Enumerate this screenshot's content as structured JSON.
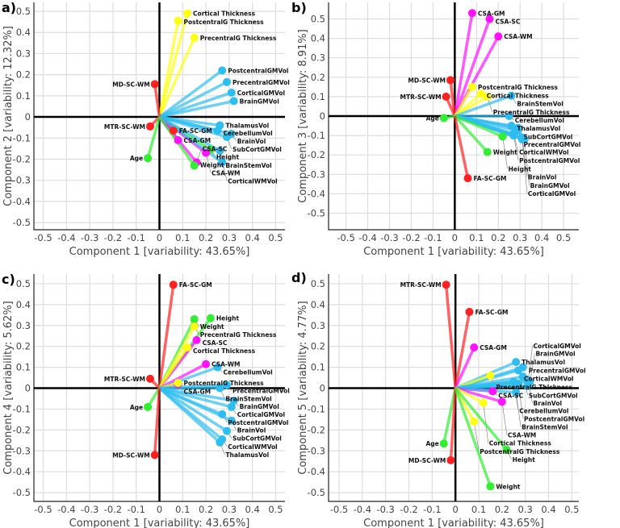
{
  "colors": {
    "red": "#ff2020",
    "yellow": "#ffff10",
    "magenta": "#ff10ff",
    "green": "#30ee30",
    "cyan": "#2ebdf0",
    "axis": "#000000",
    "grid": "#dddddd"
  },
  "groups": {
    "MD-SC-WM": "red",
    "MTR-SC-WM": "red",
    "FA-SC-GM": "red",
    "Cortical Thickness": "yellow",
    "PostcentralG Thickness": "yellow",
    "PrecentralG Thickness": "yellow",
    "CSA-GM": "magenta",
    "CSA-SC": "magenta",
    "CSA-WM": "magenta",
    "Age": "green",
    "Height": "green",
    "Weight": "green",
    "PostcentralGMVol": "cyan",
    "PrecentralGMVol": "cyan",
    "CorticalGMVol": "cyan",
    "BrainGMVol": "cyan",
    "ThalamusVol": "cyan",
    "CerebellumVol": "cyan",
    "BrainVol": "cyan",
    "SubCortGMVol": "cyan",
    "BrainStemVol": "cyan",
    "CorticalWMVol": "cyan"
  },
  "chart_data": [
    {
      "type": "scatter",
      "panel_label": "a)",
      "xlabel": "Component 1 [variability: 43.65%]",
      "ylabel": "Component 2 [variability: 12.32%]",
      "xlim": [
        -0.54,
        0.54
      ],
      "ylim": [
        -0.534,
        0.542
      ],
      "xticks": [
        "-0.5",
        "-0.4",
        "-0.3",
        "-0.2",
        "-0.1",
        "0",
        "0.1",
        "0.2",
        "0.3",
        "0.4",
        "0.5"
      ],
      "yticks": [
        "0.5",
        "0.4",
        "0.3",
        "0.2",
        "0.1",
        "0",
        "-0.1",
        "-0.2",
        "-0.3",
        "-0.4",
        "-0.5"
      ],
      "points": [
        {
          "label": "Cortical Thickness",
          "x": 0.12,
          "y": 0.49
        },
        {
          "label": "PostcentralG Thickness",
          "x": 0.08,
          "y": 0.455
        },
        {
          "label": "PrecentralG Thickness",
          "x": 0.15,
          "y": 0.375
        },
        {
          "label": "PostcentralGMVol",
          "x": 0.27,
          "y": 0.22
        },
        {
          "label": "PrecentralGMVol",
          "x": 0.29,
          "y": 0.165
        },
        {
          "label": "CorticalGMVol",
          "x": 0.31,
          "y": 0.115
        },
        {
          "label": "BrainGMVol",
          "x": 0.32,
          "y": 0.075
        },
        {
          "label": "MD-SC-WM",
          "x": -0.02,
          "y": 0.155
        },
        {
          "label": "MTR-SC-WM",
          "x": -0.04,
          "y": -0.045
        },
        {
          "label": "FA-SC-GM",
          "x": 0.06,
          "y": -0.065
        },
        {
          "label": "CSA-GM",
          "x": 0.08,
          "y": -0.11
        },
        {
          "label": "Age",
          "x": -0.05,
          "y": -0.195
        },
        {
          "label": "ThalamusVol",
          "x": 0.26,
          "y": -0.04
        },
        {
          "label": "CerebellumVol",
          "x": 0.25,
          "y": -0.065
        },
        {
          "label": "BrainVol",
          "x": 0.31,
          "y": -0.08
        },
        {
          "label": "SubCortGMVol",
          "x": 0.29,
          "y": -0.095
        },
        {
          "label": "Height",
          "x": 0.22,
          "y": -0.155
        },
        {
          "label": "BrainStemVol",
          "x": 0.26,
          "y": -0.16
        },
        {
          "label": "CSA-WM",
          "x": 0.2,
          "y": -0.17
        },
        {
          "label": "CSA-SC",
          "x": 0.16,
          "y": -0.215
        },
        {
          "label": "CorticalWMVol",
          "x": 0.27,
          "y": -0.215
        },
        {
          "label": "Weight",
          "x": 0.15,
          "y": -0.23
        }
      ]
    },
    {
      "type": "scatter",
      "panel_label": "b)",
      "xlabel": "Component 1 [variability: 43.65%]",
      "ylabel": "Component 3 [variability: 8.91%]",
      "xlim": [
        -0.58,
        0.57
      ],
      "ylim": [
        -0.585,
        0.585
      ],
      "xticks": [
        "-0.5",
        "-0.4",
        "-0.3",
        "-0.2",
        "-0.1",
        "0",
        "0.1",
        "0.2",
        "0.3",
        "0.4",
        "0.5"
      ],
      "yticks": [
        "0.5",
        "0.4",
        "0.3",
        "0.2",
        "0.1",
        "0",
        "-0.1",
        "-0.2",
        "-0.3",
        "-0.4",
        "-0.5"
      ],
      "points": [
        {
          "label": "CSA-GM",
          "x": 0.08,
          "y": 0.53
        },
        {
          "label": "CSA-SC",
          "x": 0.16,
          "y": 0.5
        },
        {
          "label": "CSA-WM",
          "x": 0.2,
          "y": 0.41
        },
        {
          "label": "MD-SC-WM",
          "x": -0.02,
          "y": 0.185
        },
        {
          "label": "MTR-SC-WM",
          "x": -0.04,
          "y": 0.1
        },
        {
          "label": "PostcentralG Thickness",
          "x": 0.08,
          "y": 0.15
        },
        {
          "label": "Cortical Thickness",
          "x": 0.12,
          "y": 0.115
        },
        {
          "label": "PrecentralG Thickness",
          "x": 0.15,
          "y": 0.1
        },
        {
          "label": "BrainStemVol",
          "x": 0.26,
          "y": 0.105
        },
        {
          "label": "CerebellumVol",
          "x": 0.25,
          "y": 0.0
        },
        {
          "label": "Age",
          "x": -0.05,
          "y": -0.01
        },
        {
          "label": "ThalamusVol",
          "x": 0.26,
          "y": -0.05
        },
        {
          "label": "SubCortGMVol",
          "x": 0.29,
          "y": -0.06
        },
        {
          "label": "PrecentralGMVol",
          "x": 0.29,
          "y": -0.075
        },
        {
          "label": "CorticalWMVol",
          "x": 0.27,
          "y": -0.09
        },
        {
          "label": "PostcentralGMVol",
          "x": 0.27,
          "y": -0.1
        },
        {
          "label": "BrainVol",
          "x": 0.31,
          "y": -0.11
        },
        {
          "label": "BrainGMVol",
          "x": 0.32,
          "y": -0.12
        },
        {
          "label": "CorticalGMVol",
          "x": 0.31,
          "y": -0.12
        },
        {
          "label": "Height",
          "x": 0.22,
          "y": -0.105
        },
        {
          "label": "Weight",
          "x": 0.15,
          "y": -0.185
        },
        {
          "label": "FA-SC-GM",
          "x": 0.06,
          "y": -0.32
        }
      ]
    },
    {
      "type": "scatter",
      "panel_label": "c)",
      "xlabel": "Component 1 [variability: 43.65%]",
      "ylabel": "Component 4 [variability: 5.62%]",
      "xlim": [
        -0.54,
        0.54
      ],
      "ylim": [
        -0.542,
        0.546
      ],
      "xticks": [
        "-0.5",
        "-0.4",
        "-0.3",
        "-0.2",
        "-0.1",
        "0",
        "0.1",
        "0.2",
        "0.3",
        "0.4",
        "0.5"
      ],
      "yticks": [
        "0.5",
        "0.4",
        "0.3",
        "0.2",
        "0.1",
        "0",
        "-0.1",
        "-0.2",
        "-0.3",
        "-0.4",
        "-0.5"
      ],
      "points": [
        {
          "label": "FA-SC-GM",
          "x": 0.06,
          "y": 0.495
        },
        {
          "label": "Height",
          "x": 0.22,
          "y": 0.335
        },
        {
          "label": "Weight",
          "x": 0.15,
          "y": 0.33
        },
        {
          "label": "PrecentralG Thickness",
          "x": 0.15,
          "y": 0.295
        },
        {
          "label": "CSA-SC",
          "x": 0.16,
          "y": 0.23
        },
        {
          "label": "Cortical Thickness",
          "x": 0.12,
          "y": 0.195
        },
        {
          "label": "CSA-WM",
          "x": 0.2,
          "y": 0.115
        },
        {
          "label": "CerebellumVol",
          "x": 0.25,
          "y": 0.1
        },
        {
          "label": "MTR-SC-WM",
          "x": -0.04,
          "y": 0.045
        },
        {
          "label": "CSA-GM",
          "x": 0.08,
          "y": 0.02
        },
        {
          "label": "PostcentralG Thickness",
          "x": 0.08,
          "y": 0.025
        },
        {
          "label": "PrecentralGMVol",
          "x": 0.29,
          "y": 0.015
        },
        {
          "label": "BrainStemVol",
          "x": 0.26,
          "y": 0.0
        },
        {
          "label": "BrainGMVol",
          "x": 0.32,
          "y": -0.06
        },
        {
          "label": "CorticalGMVol",
          "x": 0.31,
          "y": -0.09
        },
        {
          "label": "Age",
          "x": -0.05,
          "y": -0.09
        },
        {
          "label": "PostcentralGMVol",
          "x": 0.27,
          "y": -0.125
        },
        {
          "label": "BrainVol",
          "x": 0.31,
          "y": -0.155
        },
        {
          "label": "SubCortGMVol",
          "x": 0.29,
          "y": -0.205
        },
        {
          "label": "CorticalWMVol",
          "x": 0.27,
          "y": -0.245
        },
        {
          "label": "ThalamusVol",
          "x": 0.26,
          "y": -0.26
        },
        {
          "label": "MD-SC-WM",
          "x": -0.02,
          "y": -0.32
        }
      ]
    },
    {
      "type": "scatter",
      "panel_label": "d)",
      "xlabel": "Component 1 [variability: 43.65%]",
      "ylabel": "Component 5 [variability: 4.77%]",
      "xlim": [
        -0.545,
        0.53
      ],
      "ylim": [
        -0.542,
        0.546
      ],
      "xticks": [
        "-0.5",
        "-0.4",
        "-0.3",
        "-0.2",
        "-0.1",
        "0",
        "0.1",
        "0.2",
        "0.3",
        "0.4",
        "0.5"
      ],
      "yticks": [
        "0.5",
        "0.4",
        "0.3",
        "0.2",
        "0.1",
        "0",
        "-0.1",
        "-0.2",
        "-0.3",
        "-0.4",
        "-0.5"
      ],
      "points": [
        {
          "label": "MTR-SC-WM",
          "x": -0.04,
          "y": 0.495
        },
        {
          "label": "FA-SC-GM",
          "x": 0.06,
          "y": 0.365
        },
        {
          "label": "CSA-GM",
          "x": 0.08,
          "y": 0.195
        },
        {
          "label": "ThalamusVol",
          "x": 0.26,
          "y": 0.125
        },
        {
          "label": "PrecentralGMVol",
          "x": 0.29,
          "y": 0.1
        },
        {
          "label": "CorticalWMVol",
          "x": 0.27,
          "y": 0.085
        },
        {
          "label": "PrecentralG Thickness",
          "x": 0.15,
          "y": 0.06
        },
        {
          "label": "SubCortGMVol",
          "x": 0.29,
          "y": 0.055
        },
        {
          "label": "BrainVol",
          "x": 0.31,
          "y": 0.04
        },
        {
          "label": "BrainGMVol",
          "x": 0.32,
          "y": 0.03
        },
        {
          "label": "CerebellumVol",
          "x": 0.25,
          "y": 0.03
        },
        {
          "label": "PostcentralGMVol",
          "x": 0.27,
          "y": 0.02
        },
        {
          "label": "CorticalGMVol",
          "x": 0.31,
          "y": 0.01
        },
        {
          "label": "CSA-SC",
          "x": 0.16,
          "y": -0.015
        },
        {
          "label": "BrainStemVol",
          "x": 0.26,
          "y": -0.02
        },
        {
          "label": "CSA-WM",
          "x": 0.2,
          "y": -0.065
        },
        {
          "label": "Cortical Thickness",
          "x": 0.12,
          "y": -0.07
        },
        {
          "label": "PostcentralG Thickness",
          "x": 0.08,
          "y": -0.16
        },
        {
          "label": "Age",
          "x": -0.05,
          "y": -0.265
        },
        {
          "label": "Height",
          "x": 0.22,
          "y": -0.295
        },
        {
          "label": "MD-SC-WM",
          "x": -0.02,
          "y": -0.345
        },
        {
          "label": "Weight",
          "x": 0.15,
          "y": -0.47
        }
      ]
    }
  ]
}
